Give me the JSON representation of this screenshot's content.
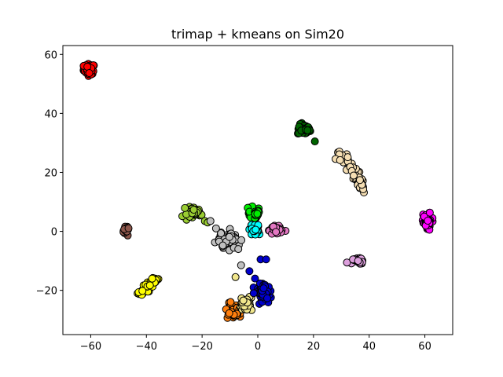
{
  "chart_data": {
    "type": "scatter",
    "title": "trimap + kmeans on Sim20",
    "xlabel": "",
    "ylabel": "",
    "xlim": [
      -70,
      70
    ],
    "ylim": [
      -35,
      63
    ],
    "xticks": [
      -60,
      -40,
      -20,
      0,
      20,
      40,
      60
    ],
    "yticks": [
      -20,
      0,
      20,
      40,
      60
    ],
    "xtick_labels": [
      "−60",
      "−40",
      "−20",
      "0",
      "20",
      "40",
      "60"
    ],
    "ytick_labels": [
      "−20",
      "0",
      "20",
      "40",
      "60"
    ],
    "grid": false,
    "legend": "none",
    "clusters": [
      {
        "color": "#ff0000",
        "center": [
          -60.5,
          55.0
        ],
        "spread": [
          1.8,
          1.6
        ],
        "n": 60
      },
      {
        "color": "#006400",
        "center": [
          16.5,
          34.5
        ],
        "spread": [
          2.0,
          1.6
        ],
        "n": 60,
        "extra": [
          [
            20.5,
            30.5
          ]
        ]
      },
      {
        "color": "#f5deb3",
        "center": [
          35.0,
          18.0
        ],
        "spread": [
          2.5,
          5.0
        ],
        "n": 50,
        "shape": "diag",
        "path": [
          [
            29.0,
            27.0
          ],
          [
            33.0,
            23.0
          ],
          [
            36.0,
            18.0
          ],
          [
            38.0,
            14.0
          ]
        ]
      },
      {
        "color": "#ff00ff",
        "center": [
          61.0,
          3.0
        ],
        "spread": [
          1.4,
          2.2
        ],
        "n": 50
      },
      {
        "color": "#9acd32",
        "center": [
          -23.0,
          6.5
        ],
        "spread": [
          2.2,
          1.6
        ],
        "n": 55,
        "extra": [
          [
            -19.0,
            3.5
          ],
          [
            -18.0,
            3.0
          ]
        ]
      },
      {
        "color": "#00ee00",
        "center": [
          -1.5,
          6.0
        ],
        "spread": [
          1.5,
          2.0
        ],
        "n": 40
      },
      {
        "color": "#00ffff",
        "center": [
          -1.0,
          1.0
        ],
        "spread": [
          2.0,
          1.8
        ],
        "n": 40
      },
      {
        "color": "#e377c2",
        "center": [
          6.0,
          0.5
        ],
        "spread": [
          2.2,
          1.6
        ],
        "n": 45
      },
      {
        "color": "#8c564b",
        "center": [
          -47.5,
          0.5
        ],
        "spread": [
          0.8,
          1.3
        ],
        "n": 25
      },
      {
        "color": "#c0c0c0",
        "center": [
          -10.5,
          -2.5
        ],
        "spread": [
          3.5,
          2.5
        ],
        "n": 60,
        "extra": [
          [
            -17.0,
            3.5
          ],
          [
            -15.0,
            1.0
          ],
          [
            -7.0,
            -6.0
          ],
          [
            -6.0,
            -11.5
          ]
        ]
      },
      {
        "color": "#dda0dd",
        "center": [
          36.0,
          -10.0
        ],
        "spread": [
          1.8,
          1.2
        ],
        "n": 30
      },
      {
        "color": "#ffff00",
        "center": [
          -39.5,
          -18.5
        ],
        "spread": [
          2.0,
          2.0
        ],
        "n": 55,
        "shape": "diag",
        "path": [
          [
            -42.0,
            -21.5
          ],
          [
            -40.0,
            -19.0
          ],
          [
            -37.0,
            -16.0
          ]
        ]
      },
      {
        "color": "#ff7f0e",
        "center": [
          -8.5,
          -27.0
        ],
        "spread": [
          2.5,
          2.0
        ],
        "n": 70
      },
      {
        "color": "#f0e68c",
        "center": [
          -4.5,
          -24.5
        ],
        "spread": [
          2.2,
          2.0
        ],
        "n": 40,
        "extra": [
          [
            -8.0,
            -15.5
          ]
        ]
      },
      {
        "color": "#0000cd",
        "center": [
          2.0,
          -20.5
        ],
        "spread": [
          2.3,
          2.2
        ],
        "n": 70,
        "extra": [
          [
            1.0,
            -9.5
          ],
          [
            3.0,
            -9.5
          ],
          [
            -3.0,
            -13.5
          ],
          [
            -1.0,
            -16.0
          ]
        ]
      }
    ]
  }
}
